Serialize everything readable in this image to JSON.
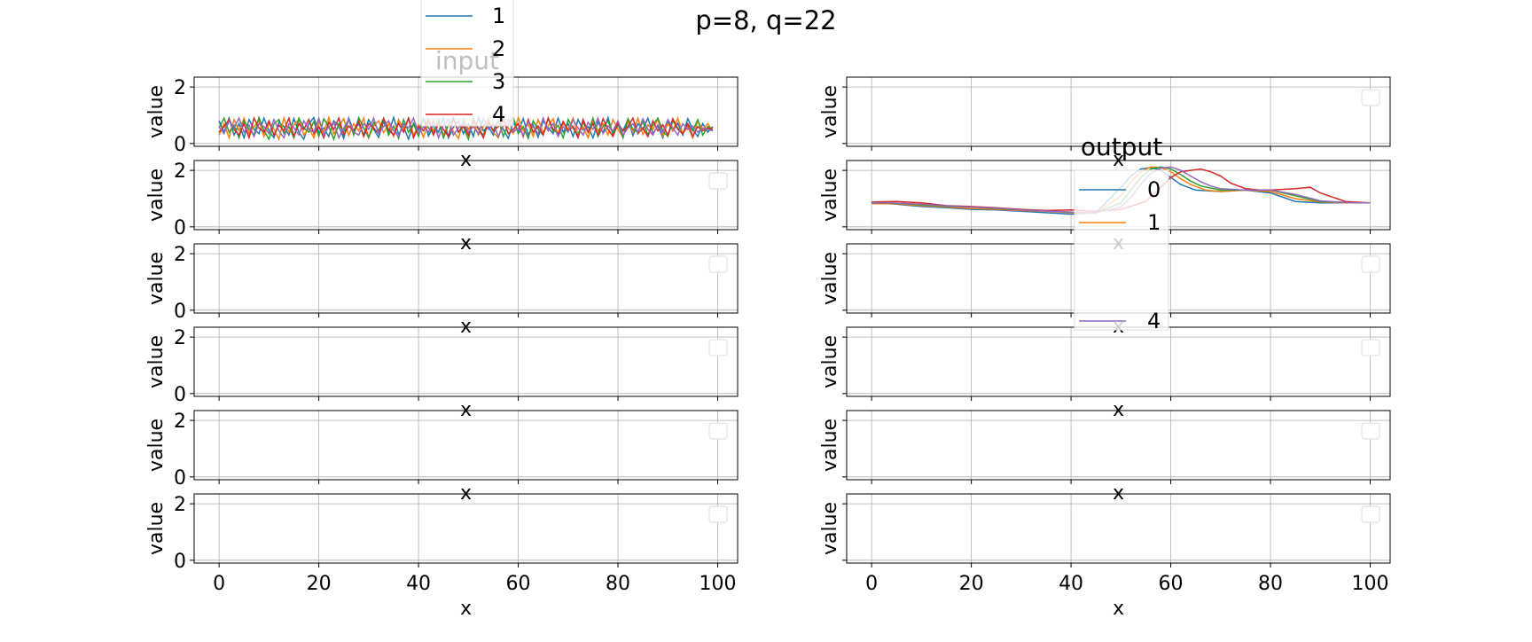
{
  "figure": {
    "suptitle": "p=8, q=22"
  },
  "colors": [
    "#1f77b4",
    "#ff7f0e",
    "#2ca02c",
    "#d62728",
    "#9467bd"
  ],
  "chart_data": [
    {
      "type": "line",
      "panel": "input-row-1",
      "title": "input",
      "xlabel": "x",
      "ylabel": "value",
      "xlim": [
        -5,
        104
      ],
      "ylim": [
        -0.1,
        2.35
      ],
      "xticks": [
        0,
        20,
        40,
        60,
        80,
        100
      ],
      "yticks": [
        0,
        2
      ],
      "xtick_labels_shown": false,
      "ytick_labels_shown": true,
      "grid": true,
      "legend": "top-center",
      "legend_entries_visible": [
        "1",
        "2",
        "3",
        "4"
      ],
      "series": [
        {
          "name": "1",
          "values": [
            0.8,
            0.4,
            0.9,
            0.3,
            0.7,
            0.2,
            0.85,
            0.5,
            0.35,
            0.9,
            0.45,
            0.2,
            0.75,
            0.6,
            0.3,
            0.88,
            0.4,
            0.15,
            0.7,
            0.92,
            0.38,
            0.55,
            0.25,
            0.8,
            0.62,
            0.18,
            0.9,
            0.42,
            0.7,
            0.3,
            0.85,
            0.5,
            0.22,
            0.78,
            0.4,
            0.92,
            0.33,
            0.6,
            0.15,
            0.72,
            0.48,
            0.88,
            0.27,
            0.65,
            0.4,
            0.9,
            0.2,
            0.58,
            0.8,
            0.35,
            0.7,
            0.25,
            0.92,
            0.45,
            0.6,
            0.3,
            0.85,
            0.5,
            0.18,
            0.75,
            0.42,
            0.88,
            0.3,
            0.66,
            0.22,
            0.8,
            0.55,
            0.35,
            0.9,
            0.4,
            0.7,
            0.25,
            0.85,
            0.48,
            0.6,
            0.2,
            0.78,
            0.38,
            0.92,
            0.3,
            0.66,
            0.45,
            0.85,
            0.28,
            0.7,
            0.5,
            0.9,
            0.35,
            0.62,
            0.2,
            0.8,
            0.44,
            0.72,
            0.3,
            0.88,
            0.5,
            0.25,
            0.7,
            0.4,
            0.6
          ]
        },
        {
          "name": "2",
          "values": [
            0.3,
            0.7,
            0.2,
            0.85,
            0.45,
            0.9,
            0.35,
            0.6,
            0.8,
            0.25,
            0.7,
            0.5,
            0.15,
            0.9,
            0.4,
            0.65,
            0.85,
            0.3,
            0.55,
            0.2,
            0.78,
            0.4,
            0.92,
            0.35,
            0.6,
            0.88,
            0.28,
            0.7,
            0.45,
            0.9,
            0.2,
            0.62,
            0.8,
            0.38,
            0.7,
            0.25,
            0.85,
            0.5,
            0.9,
            0.3,
            0.66,
            0.22,
            0.78,
            0.45,
            0.88,
            0.3,
            0.7,
            0.42,
            0.18,
            0.85,
            0.5,
            0.75,
            0.3,
            0.6,
            0.9,
            0.4,
            0.2,
            0.8,
            0.55,
            0.35,
            0.92,
            0.45,
            0.7,
            0.25,
            0.85,
            0.4,
            0.62,
            0.88,
            0.3,
            0.72,
            0.5,
            0.9,
            0.35,
            0.6,
            0.2,
            0.8,
            0.45,
            0.7,
            0.3,
            0.85,
            0.5,
            0.22,
            0.78,
            0.4,
            0.9,
            0.32,
            0.66,
            0.5,
            0.85,
            0.28,
            0.7,
            0.45,
            0.9,
            0.35,
            0.6,
            0.2,
            0.8,
            0.5,
            0.7,
            0.45
          ]
        },
        {
          "name": "3",
          "values": [
            0.55,
            0.9,
            0.4,
            0.65,
            0.2,
            0.8,
            0.5,
            0.3,
            0.92,
            0.45,
            0.15,
            0.7,
            0.85,
            0.35,
            0.6,
            0.2,
            0.9,
            0.55,
            0.4,
            0.78,
            0.25,
            0.88,
            0.6,
            0.15,
            0.7,
            0.42,
            0.85,
            0.3,
            0.92,
            0.55,
            0.2,
            0.75,
            0.45,
            0.9,
            0.3,
            0.62,
            0.18,
            0.85,
            0.4,
            0.7,
            0.25,
            0.9,
            0.55,
            0.35,
            0.8,
            0.2,
            0.66,
            0.88,
            0.4,
            0.6,
            0.15,
            0.9,
            0.5,
            0.3,
            0.78,
            0.45,
            0.85,
            0.25,
            0.7,
            0.92,
            0.35,
            0.6,
            0.18,
            0.8,
            0.5,
            0.3,
            0.9,
            0.42,
            0.65,
            0.2,
            0.85,
            0.55,
            0.3,
            0.75,
            0.4,
            0.9,
            0.25,
            0.6,
            0.8,
            0.35,
            0.7,
            0.2,
            0.88,
            0.5,
            0.4,
            0.78,
            0.3,
            0.65,
            0.9,
            0.45,
            0.25,
            0.8,
            0.55,
            0.35,
            0.7,
            0.45,
            0.85,
            0.3,
            0.6,
            0.5
          ]
        },
        {
          "name": "4",
          "values": [
            0.4,
            0.6,
            0.85,
            0.5,
            0.3,
            0.7,
            0.2,
            0.9,
            0.55,
            0.4,
            0.8,
            0.3,
            0.65,
            0.45,
            0.9,
            0.25,
            0.7,
            0.5,
            0.85,
            0.35,
            0.6,
            0.2,
            0.75,
            0.5,
            0.9,
            0.3,
            0.62,
            0.45,
            0.8,
            0.25,
            0.7,
            0.55,
            0.35,
            0.88,
            0.5,
            0.3,
            0.72,
            0.4,
            0.9,
            0.2,
            0.6,
            0.45,
            0.85,
            0.3,
            0.7,
            0.5,
            0.25,
            0.9,
            0.4,
            0.65,
            0.3,
            0.8,
            0.55,
            0.2,
            0.75,
            0.45,
            0.6,
            0.88,
            0.35,
            0.5,
            0.7,
            0.25,
            0.85,
            0.4,
            0.62,
            0.3,
            0.9,
            0.5,
            0.35,
            0.78,
            0.45,
            0.6,
            0.2,
            0.85,
            0.4,
            0.7,
            0.3,
            0.88,
            0.5,
            0.25,
            0.72,
            0.45,
            0.6,
            0.9,
            0.35,
            0.55,
            0.25,
            0.8,
            0.45,
            0.66,
            0.3,
            0.88,
            0.5,
            0.35,
            0.7,
            0.25,
            0.6,
            0.45,
            0.55,
            0.5
          ]
        },
        {
          "name": "",
          "values": [
            0.6,
            0.35,
            0.8,
            0.55,
            0.9,
            0.4,
            0.65,
            0.25,
            0.7,
            0.6,
            0.35,
            0.85,
            0.45,
            0.2,
            0.7,
            0.55,
            0.3,
            0.8,
            0.5,
            0.4,
            0.9,
            0.3,
            0.6,
            0.75,
            0.2,
            0.55,
            0.85,
            0.4,
            0.3,
            0.7,
            0.5,
            0.9,
            0.35,
            0.6,
            0.8,
            0.45,
            0.25,
            0.7,
            0.55,
            0.9,
            0.35,
            0.6,
            0.4,
            0.8,
            0.2,
            0.65,
            0.85,
            0.3,
            0.55,
            0.75,
            0.4,
            0.6,
            0.35,
            0.88,
            0.5,
            0.7,
            0.25,
            0.62,
            0.85,
            0.4,
            0.55,
            0.3,
            0.78,
            0.6,
            0.35,
            0.9,
            0.45,
            0.7,
            0.25,
            0.6,
            0.4,
            0.85,
            0.55,
            0.3,
            0.75,
            0.5,
            0.9,
            0.35,
            0.62,
            0.45,
            0.8,
            0.3,
            0.55,
            0.7,
            0.4,
            0.88,
            0.5,
            0.3,
            0.66,
            0.4,
            0.85,
            0.55,
            0.3,
            0.7,
            0.5,
            0.62,
            0.4,
            0.55,
            0.5,
            0.45
          ]
        }
      ]
    },
    {
      "type": "line",
      "panel": "input-row-2",
      "xlabel": "x",
      "ylabel": "value",
      "xlim": [
        -5,
        104
      ],
      "ylim": [
        -0.1,
        2.35
      ],
      "yticks": [
        0,
        2
      ],
      "xtick_labels_shown": false,
      "ytick_labels_shown": true,
      "grid": true,
      "legend": "top-right",
      "series": []
    },
    {
      "type": "line",
      "panel": "input-row-3",
      "xlabel": "x",
      "ylabel": "value",
      "xlim": [
        -5,
        104
      ],
      "ylim": [
        -0.1,
        2.35
      ],
      "yticks": [
        0,
        2
      ],
      "xtick_labels_shown": false,
      "ytick_labels_shown": true,
      "grid": true,
      "legend": "top-right",
      "series": []
    },
    {
      "type": "line",
      "panel": "input-row-4",
      "xlabel": "x",
      "ylabel": "value",
      "xlim": [
        -5,
        104
      ],
      "ylim": [
        -0.1,
        2.35
      ],
      "yticks": [
        0,
        2
      ],
      "xtick_labels_shown": false,
      "ytick_labels_shown": true,
      "grid": true,
      "legend": "top-right",
      "series": []
    },
    {
      "type": "line",
      "panel": "input-row-5",
      "xlabel": "x",
      "ylabel": "value",
      "xlim": [
        -5,
        104
      ],
      "ylim": [
        -0.1,
        2.35
      ],
      "yticks": [
        0,
        2
      ],
      "xtick_labels_shown": false,
      "ytick_labels_shown": true,
      "grid": true,
      "legend": "top-right",
      "series": []
    },
    {
      "type": "line",
      "panel": "input-row-6",
      "xlabel": "x",
      "ylabel": "value",
      "xlim": [
        -5,
        104
      ],
      "ylim": [
        -0.1,
        2.35
      ],
      "xticks": [
        0,
        20,
        40,
        60,
        80,
        100
      ],
      "yticks": [
        0,
        2
      ],
      "xtick_labels_shown": true,
      "ytick_labels_shown": true,
      "grid": true,
      "legend": "top-right",
      "series": []
    },
    {
      "type": "line",
      "panel": "output-row-1",
      "xlabel": "x",
      "ylabel": "value",
      "xlim": [
        -5,
        104
      ],
      "ylim": [
        -0.1,
        2.35
      ],
      "xtick_labels_shown": false,
      "ytick_labels_shown": false,
      "grid": true,
      "legend": "top-right",
      "series": []
    },
    {
      "type": "line",
      "panel": "output-row-2",
      "title": "output",
      "xlabel": "x",
      "ylabel": "value",
      "xlim": [
        -5,
        104
      ],
      "ylim": [
        -0.1,
        2.35
      ],
      "xtick_labels_shown": false,
      "ytick_labels_shown": false,
      "grid": true,
      "legend": "center",
      "legend_entries_visible": [
        "0",
        "1",
        "4"
      ],
      "series": [
        {
          "name": "0",
          "x": [
            0,
            5,
            10,
            15,
            20,
            25,
            30,
            35,
            40,
            45,
            50,
            52,
            54,
            56,
            58,
            60,
            62,
            65,
            70,
            75,
            80,
            85,
            90,
            95,
            100
          ],
          "values": [
            0.85,
            0.8,
            0.72,
            0.68,
            0.62,
            0.6,
            0.55,
            0.5,
            0.45,
            0.5,
            1.4,
            1.8,
            2.05,
            2.1,
            2.0,
            1.75,
            1.5,
            1.3,
            1.25,
            1.3,
            1.2,
            0.9,
            0.85,
            0.85,
            0.85
          ]
        },
        {
          "name": "1",
          "x": [
            0,
            5,
            10,
            15,
            20,
            25,
            30,
            35,
            40,
            45,
            50,
            52,
            54,
            56,
            58,
            60,
            62,
            64,
            67,
            70,
            75,
            80,
            85,
            90,
            95,
            100
          ],
          "values": [
            0.82,
            0.82,
            0.75,
            0.7,
            0.65,
            0.62,
            0.58,
            0.55,
            0.5,
            0.48,
            1.1,
            1.6,
            1.95,
            2.12,
            2.1,
            1.95,
            1.7,
            1.5,
            1.3,
            1.25,
            1.3,
            1.25,
            1.0,
            0.88,
            0.85,
            0.85
          ]
        },
        {
          "name": "",
          "x": [
            0,
            5,
            10,
            15,
            20,
            25,
            30,
            35,
            40,
            45,
            50,
            52,
            54,
            56,
            58,
            60,
            62,
            64,
            66,
            70,
            75,
            80,
            85,
            90,
            95,
            100
          ],
          "values": [
            0.85,
            0.84,
            0.78,
            0.72,
            0.7,
            0.64,
            0.6,
            0.57,
            0.52,
            0.5,
            0.85,
            1.3,
            1.75,
            2.05,
            2.12,
            2.05,
            1.85,
            1.62,
            1.45,
            1.3,
            1.3,
            1.3,
            1.1,
            0.9,
            0.86,
            0.85
          ]
        },
        {
          "name": "",
          "x": [
            0,
            5,
            10,
            15,
            20,
            25,
            30,
            35,
            40,
            45,
            50,
            55,
            58,
            60,
            62,
            64,
            66,
            68,
            70,
            72,
            75,
            78,
            80,
            85,
            88,
            90,
            95,
            100
          ],
          "values": [
            0.88,
            0.9,
            0.85,
            0.75,
            0.72,
            0.68,
            0.62,
            0.58,
            0.6,
            0.55,
            0.62,
            0.9,
            1.4,
            1.75,
            1.95,
            2.0,
            2.05,
            1.95,
            1.8,
            1.55,
            1.35,
            1.3,
            1.3,
            1.35,
            1.4,
            1.2,
            0.9,
            0.85
          ]
        },
        {
          "name": "4",
          "x": [
            0,
            5,
            10,
            15,
            20,
            25,
            30,
            35,
            40,
            45,
            50,
            52,
            54,
            56,
            58,
            60,
            62,
            64,
            66,
            68,
            70,
            75,
            80,
            85,
            90,
            95,
            100
          ],
          "values": [
            0.86,
            0.84,
            0.8,
            0.74,
            0.7,
            0.66,
            0.6,
            0.56,
            0.52,
            0.5,
            0.7,
            1.05,
            1.5,
            1.9,
            2.08,
            2.12,
            2.0,
            1.8,
            1.6,
            1.45,
            1.35,
            1.3,
            1.3,
            1.15,
            0.92,
            0.86,
            0.85
          ]
        }
      ]
    },
    {
      "type": "line",
      "panel": "output-row-3",
      "xlabel": "x",
      "ylabel": "value",
      "xlim": [
        -5,
        104
      ],
      "ylim": [
        -0.1,
        2.35
      ],
      "xtick_labels_shown": false,
      "ytick_labels_shown": false,
      "grid": true,
      "legend": "top-right",
      "series": []
    },
    {
      "type": "line",
      "panel": "output-row-4",
      "xlabel": "x",
      "ylabel": "value",
      "xlim": [
        -5,
        104
      ],
      "ylim": [
        -0.1,
        2.35
      ],
      "xtick_labels_shown": false,
      "ytick_labels_shown": false,
      "grid": true,
      "legend": "top-right",
      "series": []
    },
    {
      "type": "line",
      "panel": "output-row-5",
      "xlabel": "x",
      "ylabel": "value",
      "xlim": [
        -5,
        104
      ],
      "ylim": [
        -0.1,
        2.35
      ],
      "xtick_labels_shown": false,
      "ytick_labels_shown": false,
      "grid": true,
      "legend": "top-right",
      "series": []
    },
    {
      "type": "line",
      "panel": "output-row-6",
      "xlabel": "x",
      "ylabel": "value",
      "xlim": [
        -5,
        104
      ],
      "ylim": [
        -0.1,
        2.35
      ],
      "xticks": [
        0,
        20,
        40,
        60,
        80,
        100
      ],
      "xtick_labels_shown": true,
      "ytick_labels_shown": false,
      "grid": true,
      "legend": "top-right",
      "series": []
    }
  ]
}
